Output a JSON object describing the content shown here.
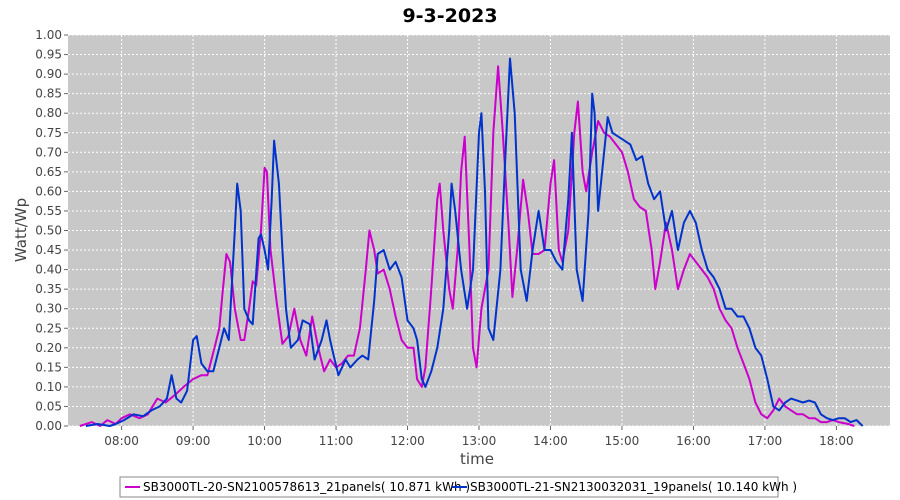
{
  "chart_data": {
    "type": "line",
    "title": "9-3-2023",
    "xlabel": "time",
    "ylabel": "Watt/Wp",
    "ylim": [
      0,
      1.0
    ],
    "xlim": [
      "07:15",
      "18:45"
    ],
    "yticks": [
      "0.00",
      "0.05",
      "0.10",
      "0.15",
      "0.20",
      "0.25",
      "0.30",
      "0.35",
      "0.40",
      "0.45",
      "0.50",
      "0.55",
      "0.60",
      "0.65",
      "0.70",
      "0.75",
      "0.80",
      "0.85",
      "0.90",
      "0.95",
      "1.00"
    ],
    "xticks": [
      "08:00",
      "09:00",
      "10:00",
      "11:00",
      "12:00",
      "13:00",
      "14:00",
      "15:00",
      "16:00",
      "17:00",
      "18:00"
    ],
    "grid": true,
    "legend_position": "bottom",
    "colors": {
      "plot_bg": "#c8c8c8",
      "grid": "#ffffff"
    },
    "series": [
      {
        "name": "SB3000TL-20-SN2100578613_21panels( 10.871 kWh )",
        "color": "#cc00cc",
        "points": [
          [
            "07:25",
            0.0
          ],
          [
            "07:35",
            0.01
          ],
          [
            "07:42",
            0.0
          ],
          [
            "07:48",
            0.015
          ],
          [
            "07:55",
            0.005
          ],
          [
            "08:00",
            0.02
          ],
          [
            "08:07",
            0.03
          ],
          [
            "08:15",
            0.02
          ],
          [
            "08:22",
            0.03
          ],
          [
            "08:30",
            0.07
          ],
          [
            "08:37",
            0.06
          ],
          [
            "08:45",
            0.08
          ],
          [
            "08:52",
            0.1
          ],
          [
            "09:00",
            0.12
          ],
          [
            "09:07",
            0.13
          ],
          [
            "09:12",
            0.13
          ],
          [
            "09:18",
            0.2
          ],
          [
            "09:22",
            0.25
          ],
          [
            "09:25",
            0.35
          ],
          [
            "09:28",
            0.44
          ],
          [
            "09:31",
            0.42
          ],
          [
            "09:35",
            0.3
          ],
          [
            "09:40",
            0.22
          ],
          [
            "09:43",
            0.22
          ],
          [
            "09:47",
            0.3
          ],
          [
            "09:50",
            0.37
          ],
          [
            "09:53",
            0.36
          ],
          [
            "09:57",
            0.5
          ],
          [
            "10:00",
            0.66
          ],
          [
            "10:02",
            0.65
          ],
          [
            "10:05",
            0.45
          ],
          [
            "10:10",
            0.32
          ],
          [
            "10:15",
            0.21
          ],
          [
            "10:20",
            0.23
          ],
          [
            "10:25",
            0.3
          ],
          [
            "10:30",
            0.22
          ],
          [
            "10:35",
            0.18
          ],
          [
            "10:40",
            0.28
          ],
          [
            "10:45",
            0.2
          ],
          [
            "10:50",
            0.14
          ],
          [
            "10:55",
            0.17
          ],
          [
            "11:00",
            0.15
          ],
          [
            "11:05",
            0.16
          ],
          [
            "11:10",
            0.18
          ],
          [
            "11:15",
            0.18
          ],
          [
            "11:20",
            0.25
          ],
          [
            "11:25",
            0.4
          ],
          [
            "11:28",
            0.5
          ],
          [
            "11:32",
            0.45
          ],
          [
            "11:35",
            0.39
          ],
          [
            "11:40",
            0.4
          ],
          [
            "11:45",
            0.35
          ],
          [
            "11:50",
            0.28
          ],
          [
            "11:55",
            0.22
          ],
          [
            "12:00",
            0.2
          ],
          [
            "12:05",
            0.2
          ],
          [
            "12:08",
            0.12
          ],
          [
            "12:12",
            0.1
          ],
          [
            "12:15",
            0.15
          ],
          [
            "12:20",
            0.35
          ],
          [
            "12:25",
            0.58
          ],
          [
            "12:27",
            0.62
          ],
          [
            "12:30",
            0.5
          ],
          [
            "12:35",
            0.35
          ],
          [
            "12:38",
            0.3
          ],
          [
            "12:42",
            0.45
          ],
          [
            "12:45",
            0.65
          ],
          [
            "12:48",
            0.74
          ],
          [
            "12:52",
            0.45
          ],
          [
            "12:55",
            0.2
          ],
          [
            "12:58",
            0.15
          ],
          [
            "13:02",
            0.3
          ],
          [
            "13:08",
            0.4
          ],
          [
            "13:12",
            0.75
          ],
          [
            "13:16",
            0.92
          ],
          [
            "13:20",
            0.75
          ],
          [
            "13:25",
            0.5
          ],
          [
            "13:28",
            0.33
          ],
          [
            "13:32",
            0.45
          ],
          [
            "13:37",
            0.63
          ],
          [
            "13:41",
            0.55
          ],
          [
            "13:45",
            0.44
          ],
          [
            "13:50",
            0.44
          ],
          [
            "13:55",
            0.45
          ],
          [
            "14:00",
            0.62
          ],
          [
            "14:03",
            0.68
          ],
          [
            "14:07",
            0.45
          ],
          [
            "14:10",
            0.42
          ],
          [
            "14:15",
            0.5
          ],
          [
            "14:20",
            0.75
          ],
          [
            "14:23",
            0.83
          ],
          [
            "14:27",
            0.65
          ],
          [
            "14:30",
            0.6
          ],
          [
            "14:35",
            0.7
          ],
          [
            "14:40",
            0.78
          ],
          [
            "14:45",
            0.75
          ],
          [
            "14:50",
            0.74
          ],
          [
            "14:55",
            0.72
          ],
          [
            "15:00",
            0.7
          ],
          [
            "15:05",
            0.65
          ],
          [
            "15:10",
            0.58
          ],
          [
            "15:15",
            0.56
          ],
          [
            "15:20",
            0.55
          ],
          [
            "15:25",
            0.45
          ],
          [
            "15:28",
            0.35
          ],
          [
            "15:32",
            0.42
          ],
          [
            "15:37",
            0.52
          ],
          [
            "15:42",
            0.45
          ],
          [
            "15:47",
            0.35
          ],
          [
            "15:52",
            0.4
          ],
          [
            "15:57",
            0.44
          ],
          [
            "16:02",
            0.42
          ],
          [
            "16:07",
            0.4
          ],
          [
            "16:12",
            0.38
          ],
          [
            "16:17",
            0.35
          ],
          [
            "16:22",
            0.3
          ],
          [
            "16:27",
            0.27
          ],
          [
            "16:32",
            0.25
          ],
          [
            "16:37",
            0.2
          ],
          [
            "16:42",
            0.16
          ],
          [
            "16:47",
            0.12
          ],
          [
            "16:52",
            0.06
          ],
          [
            "16:57",
            0.03
          ],
          [
            "17:02",
            0.02
          ],
          [
            "17:07",
            0.04
          ],
          [
            "17:12",
            0.07
          ],
          [
            "17:17",
            0.05
          ],
          [
            "17:22",
            0.04
          ],
          [
            "17:27",
            0.03
          ],
          [
            "17:32",
            0.03
          ],
          [
            "17:37",
            0.02
          ],
          [
            "17:42",
            0.02
          ],
          [
            "17:47",
            0.01
          ],
          [
            "17:52",
            0.01
          ],
          [
            "17:57",
            0.015
          ],
          [
            "18:02",
            0.01
          ],
          [
            "18:10",
            0.005
          ],
          [
            "18:15",
            0.0
          ]
        ]
      },
      {
        "name": "SB3000TL-21-SN2130032031_19panels( 10.140 kWh )",
        "color": "#0033cc",
        "points": [
          [
            "07:30",
            0.0
          ],
          [
            "07:40",
            0.005
          ],
          [
            "07:50",
            0.0
          ],
          [
            "07:55",
            0.005
          ],
          [
            "08:02",
            0.015
          ],
          [
            "08:10",
            0.03
          ],
          [
            "08:18",
            0.025
          ],
          [
            "08:25",
            0.04
          ],
          [
            "08:32",
            0.05
          ],
          [
            "08:38",
            0.07
          ],
          [
            "08:42",
            0.13
          ],
          [
            "08:46",
            0.07
          ],
          [
            "08:50",
            0.06
          ],
          [
            "08:55",
            0.09
          ],
          [
            "09:00",
            0.22
          ],
          [
            "09:03",
            0.23
          ],
          [
            "09:07",
            0.16
          ],
          [
            "09:12",
            0.14
          ],
          [
            "09:17",
            0.14
          ],
          [
            "09:22",
            0.2
          ],
          [
            "09:26",
            0.25
          ],
          [
            "09:30",
            0.22
          ],
          [
            "09:35",
            0.5
          ],
          [
            "09:37",
            0.62
          ],
          [
            "09:40",
            0.55
          ],
          [
            "09:43",
            0.3
          ],
          [
            "09:47",
            0.27
          ],
          [
            "09:50",
            0.26
          ],
          [
            "09:55",
            0.48
          ],
          [
            "09:57",
            0.49
          ],
          [
            "10:00",
            0.45
          ],
          [
            "10:03",
            0.4
          ],
          [
            "10:06",
            0.58
          ],
          [
            "10:08",
            0.73
          ],
          [
            "10:12",
            0.62
          ],
          [
            "10:15",
            0.45
          ],
          [
            "10:18",
            0.3
          ],
          [
            "10:22",
            0.2
          ],
          [
            "10:28",
            0.22
          ],
          [
            "10:32",
            0.27
          ],
          [
            "10:38",
            0.26
          ],
          [
            "10:42",
            0.17
          ],
          [
            "10:48",
            0.22
          ],
          [
            "10:52",
            0.27
          ],
          [
            "10:55",
            0.22
          ],
          [
            "10:58",
            0.18
          ],
          [
            "11:02",
            0.13
          ],
          [
            "11:05",
            0.15
          ],
          [
            "11:08",
            0.17
          ],
          [
            "11:12",
            0.15
          ],
          [
            "11:18",
            0.17
          ],
          [
            "11:22",
            0.18
          ],
          [
            "11:27",
            0.17
          ],
          [
            "11:32",
            0.32
          ],
          [
            "11:35",
            0.44
          ],
          [
            "11:40",
            0.45
          ],
          [
            "11:45",
            0.4
          ],
          [
            "11:50",
            0.42
          ],
          [
            "11:55",
            0.38
          ],
          [
            "12:00",
            0.27
          ],
          [
            "12:05",
            0.25
          ],
          [
            "12:08",
            0.22
          ],
          [
            "12:12",
            0.12
          ],
          [
            "12:15",
            0.1
          ],
          [
            "12:20",
            0.14
          ],
          [
            "12:25",
            0.2
          ],
          [
            "12:30",
            0.3
          ],
          [
            "12:35",
            0.5
          ],
          [
            "12:37",
            0.62
          ],
          [
            "12:40",
            0.55
          ],
          [
            "12:45",
            0.4
          ],
          [
            "12:50",
            0.3
          ],
          [
            "12:55",
            0.4
          ],
          [
            "13:00",
            0.75
          ],
          [
            "13:02",
            0.8
          ],
          [
            "13:05",
            0.6
          ],
          [
            "13:08",
            0.25
          ],
          [
            "13:12",
            0.22
          ],
          [
            "13:18",
            0.4
          ],
          [
            "13:22",
            0.68
          ],
          [
            "13:26",
            0.94
          ],
          [
            "13:30",
            0.8
          ],
          [
            "13:35",
            0.4
          ],
          [
            "13:40",
            0.32
          ],
          [
            "13:45",
            0.45
          ],
          [
            "13:50",
            0.55
          ],
          [
            "13:55",
            0.45
          ],
          [
            "14:00",
            0.45
          ],
          [
            "14:05",
            0.42
          ],
          [
            "14:10",
            0.4
          ],
          [
            "14:15",
            0.58
          ],
          [
            "14:18",
            0.75
          ],
          [
            "14:22",
            0.4
          ],
          [
            "14:27",
            0.32
          ],
          [
            "14:32",
            0.55
          ],
          [
            "14:35",
            0.85
          ],
          [
            "14:37",
            0.8
          ],
          [
            "14:40",
            0.55
          ],
          [
            "14:45",
            0.7
          ],
          [
            "14:48",
            0.79
          ],
          [
            "14:52",
            0.75
          ],
          [
            "14:57",
            0.74
          ],
          [
            "15:02",
            0.73
          ],
          [
            "15:07",
            0.72
          ],
          [
            "15:12",
            0.68
          ],
          [
            "15:17",
            0.69
          ],
          [
            "15:22",
            0.62
          ],
          [
            "15:27",
            0.58
          ],
          [
            "15:32",
            0.6
          ],
          [
            "15:37",
            0.5
          ],
          [
            "15:42",
            0.55
          ],
          [
            "15:47",
            0.45
          ],
          [
            "15:52",
            0.52
          ],
          [
            "15:57",
            0.55
          ],
          [
            "16:02",
            0.52
          ],
          [
            "16:07",
            0.45
          ],
          [
            "16:12",
            0.4
          ],
          [
            "16:17",
            0.38
          ],
          [
            "16:22",
            0.35
          ],
          [
            "16:27",
            0.3
          ],
          [
            "16:32",
            0.3
          ],
          [
            "16:37",
            0.28
          ],
          [
            "16:42",
            0.28
          ],
          [
            "16:47",
            0.25
          ],
          [
            "16:52",
            0.2
          ],
          [
            "16:57",
            0.18
          ],
          [
            "17:02",
            0.12
          ],
          [
            "17:07",
            0.05
          ],
          [
            "17:12",
            0.04
          ],
          [
            "17:17",
            0.06
          ],
          [
            "17:22",
            0.07
          ],
          [
            "17:27",
            0.065
          ],
          [
            "17:32",
            0.06
          ],
          [
            "17:37",
            0.065
          ],
          [
            "17:42",
            0.06
          ],
          [
            "17:47",
            0.03
          ],
          [
            "17:52",
            0.02
          ],
          [
            "17:57",
            0.015
          ],
          [
            "18:02",
            0.02
          ],
          [
            "18:07",
            0.02
          ],
          [
            "18:12",
            0.01
          ],
          [
            "18:17",
            0.015
          ],
          [
            "18:22",
            0.0
          ]
        ]
      }
    ]
  }
}
